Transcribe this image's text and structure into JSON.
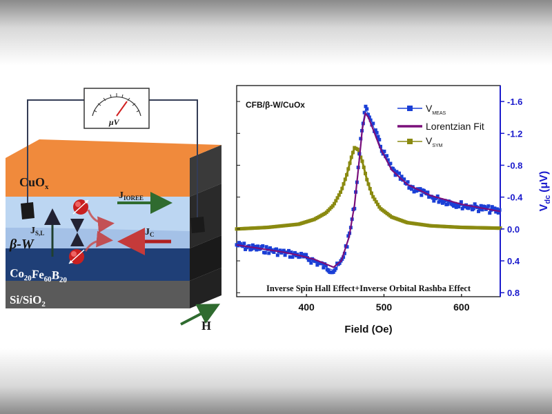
{
  "device": {
    "meter_label": "μV",
    "layers": [
      {
        "label": "CuO",
        "sub": "x"
      },
      {
        "label": "β-W",
        "sub": ""
      },
      {
        "label": "Co",
        "sub1": "20",
        "mid": "Fe",
        "sub2": "60",
        "end": "B",
        "sub3": "20"
      },
      {
        "label": "Si/SiO",
        "sub": "2"
      }
    ],
    "arrows": {
      "jioree": {
        "main": "J",
        "sub": "IOREE"
      },
      "jsl": {
        "main": "J",
        "sub": "S,L"
      },
      "jc": {
        "main": "J",
        "sub": "C"
      },
      "h": "H"
    },
    "colors": {
      "cuox": "#f08a3c",
      "w": "#bcd6f2",
      "cofeb": "#1f3f77",
      "si": "#5a5a5a"
    }
  },
  "chart_data": {
    "type": "line",
    "title": "CFB/β-W/CuOx",
    "xlabel": "Field (Oe)",
    "ylabel": "V",
    "ylabel_sub": "dc",
    "ylabel_unit": "(μV)",
    "xlim": [
      310,
      650
    ],
    "ylim_top": -1.8,
    "ylim_bottom": 0.85,
    "xticks": [
      400,
      500,
      600
    ],
    "yticks": [
      -1.6,
      -1.2,
      -0.8,
      -0.4,
      0.0,
      0.4,
      0.8
    ],
    "ytick_labels": [
      "-1.6",
      "-1.2",
      "-0.8",
      "-0.4",
      "0.0",
      "0.4",
      "0.8"
    ],
    "legend_position": "top-right",
    "annotation": "Inverse Spin Hall Effect+Inverse Orbital Rashba Effect",
    "series": [
      {
        "name": "V",
        "name_sub": "MEAS",
        "color": "#1a3fd6",
        "style": "markers",
        "x": [
          310,
          330,
          350,
          370,
          390,
          410,
          425,
          435,
          445,
          455,
          462,
          468,
          472,
          476,
          480,
          486,
          495,
          510,
          530,
          560,
          600,
          650
        ],
        "y": [
          0.2,
          0.24,
          0.26,
          0.3,
          0.33,
          0.4,
          0.48,
          0.52,
          0.42,
          0.1,
          -0.3,
          -0.9,
          -1.3,
          -1.5,
          -1.45,
          -1.3,
          -1.05,
          -0.75,
          -0.55,
          -0.4,
          -0.3,
          -0.22
        ]
      },
      {
        "name": "Lorentzian Fit",
        "color": "#7a0f7a",
        "style": "line",
        "x": [
          310,
          330,
          350,
          370,
          390,
          410,
          425,
          435,
          445,
          455,
          462,
          468,
          472,
          476,
          480,
          486,
          495,
          510,
          530,
          560,
          600,
          650
        ],
        "y": [
          0.2,
          0.23,
          0.26,
          0.29,
          0.33,
          0.38,
          0.44,
          0.48,
          0.4,
          0.1,
          -0.3,
          -0.85,
          -1.25,
          -1.45,
          -1.4,
          -1.25,
          -1.02,
          -0.74,
          -0.56,
          -0.42,
          -0.31,
          -0.22
        ]
      },
      {
        "name": "V",
        "name_sub": "SYM",
        "color": "#8a8a10",
        "style": "line-markers",
        "x": [
          310,
          350,
          390,
          410,
          425,
          435,
          445,
          452,
          458,
          462,
          466,
          472,
          478,
          485,
          495,
          510,
          530,
          560,
          600,
          650
        ],
        "y": [
          0.0,
          -0.02,
          -0.06,
          -0.12,
          -0.2,
          -0.3,
          -0.48,
          -0.68,
          -0.9,
          -1.02,
          -1.0,
          -0.85,
          -0.62,
          -0.42,
          -0.26,
          -0.15,
          -0.08,
          -0.04,
          -0.02,
          -0.01
        ]
      }
    ]
  }
}
